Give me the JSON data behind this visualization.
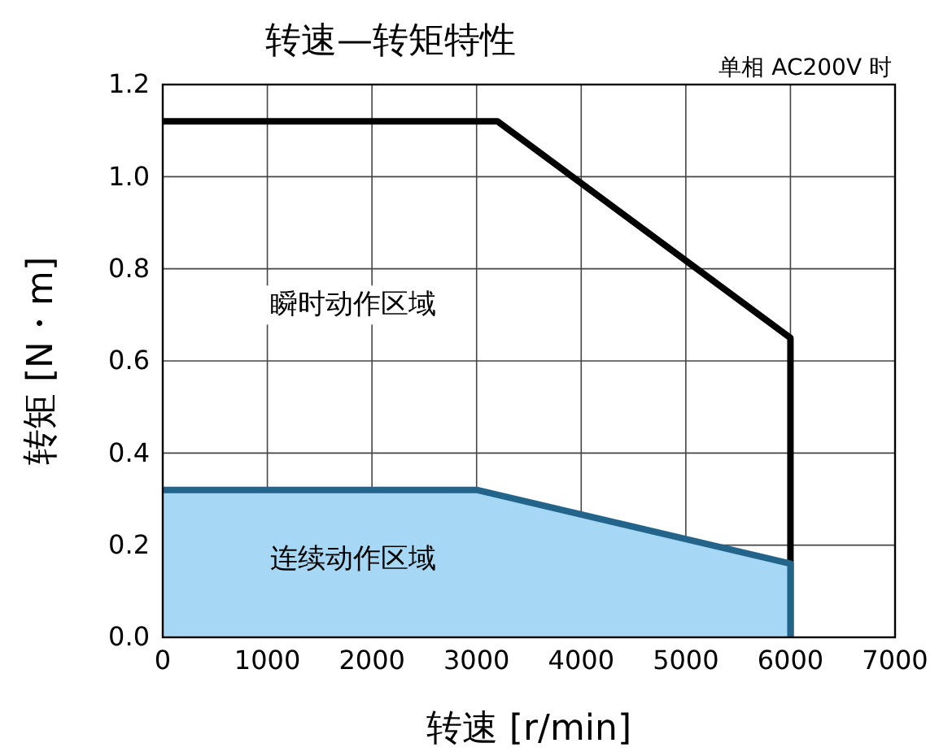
{
  "chart_data": {
    "type": "line",
    "title": "转速—转矩特性",
    "xlabel": "转速 [r/min]",
    "ylabel": "转矩 [N・m]",
    "xlim": [
      0,
      7000
    ],
    "xticks": [
      0,
      1000,
      2000,
      3000,
      4000,
      5000,
      6000,
      7000
    ],
    "ylim": [
      0,
      1.2
    ],
    "yticks": [
      {
        "value": 0,
        "label": "0.0"
      },
      {
        "value": 0.2,
        "label": "0.2"
      },
      {
        "value": 0.4,
        "label": "0.4"
      },
      {
        "value": 0.6,
        "label": "0.6"
      },
      {
        "value": 0.8,
        "label": "0.8"
      },
      {
        "value": 1.0,
        "label": "1.0"
      },
      {
        "value": 1.2,
        "label": "1.2"
      }
    ],
    "grid": true,
    "series": [
      {
        "type": "area",
        "color": "#a6d8f5",
        "x": [
          0,
          3000,
          6000,
          6000
        ],
        "values": [
          0.32,
          0.32,
          0.16,
          0
        ]
      },
      {
        "color": "#000000",
        "x": [
          0,
          3200,
          6000,
          6000
        ],
        "values": [
          1.12,
          1.12,
          0.65,
          0
        ]
      }
    ],
    "annotations": [
      "单相 AC200V 时",
      "瞬时动作区域",
      "连续动作区域"
    ]
  }
}
